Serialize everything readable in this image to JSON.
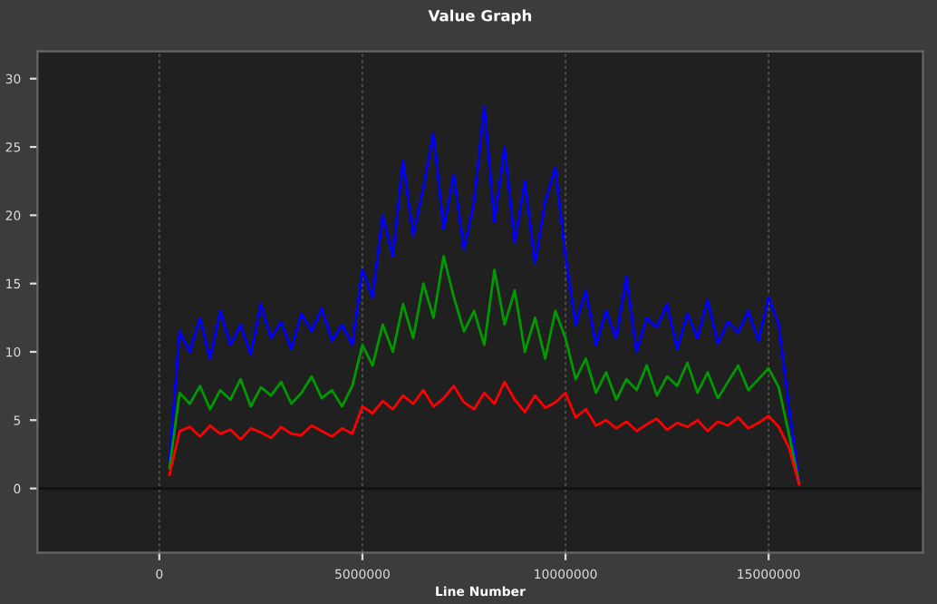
{
  "chart_data": {
    "type": "line",
    "title": "Value Graph",
    "xlabel": "Line Number",
    "x": [
      250000,
      500000,
      750000,
      1000000,
      1250000,
      1500000,
      1750000,
      2000000,
      2250000,
      2500000,
      2750000,
      3000000,
      3250000,
      3500000,
      3750000,
      4000000,
      4250000,
      4500000,
      4750000,
      5000000,
      5250000,
      5500000,
      5750000,
      6000000,
      6250000,
      6500000,
      6750000,
      7000000,
      7250000,
      7500000,
      7750000,
      8000000,
      8250000,
      8500000,
      8750000,
      9000000,
      9250000,
      9500000,
      9750000,
      10000000,
      10250000,
      10500000,
      10750000,
      11000000,
      11250000,
      11500000,
      11750000,
      12000000,
      12250000,
      12500000,
      12750000,
      13000000,
      13250000,
      13500000,
      13750000,
      14000000,
      14250000,
      14500000,
      14750000,
      15000000,
      15250000,
      15500000,
      15750000
    ],
    "series": [
      {
        "color": "#0000ff",
        "values": [
          2.0,
          11.5,
          10.0,
          12.5,
          9.5,
          13.0,
          10.5,
          12.0,
          9.8,
          13.5,
          11.0,
          12.2,
          10.2,
          12.8,
          11.5,
          13.2,
          10.8,
          12.0,
          10.5,
          16.0,
          14.0,
          20.0,
          17.0,
          24.0,
          18.5,
          22.0,
          26.0,
          19.0,
          23.0,
          17.5,
          21.0,
          28.0,
          19.5,
          25.0,
          18.0,
          22.5,
          16.5,
          21.0,
          23.5,
          17.0,
          12.0,
          14.5,
          10.5,
          13.0,
          11.0,
          15.5,
          10.0,
          12.5,
          11.8,
          13.5,
          10.2,
          12.8,
          11.0,
          13.8,
          10.6,
          12.2,
          11.4,
          13.0,
          10.8,
          14.0,
          12.0,
          6.0,
          0.5
        ]
      },
      {
        "color": "#009900",
        "values": [
          1.5,
          7.0,
          6.2,
          7.5,
          5.8,
          7.2,
          6.5,
          8.0,
          6.0,
          7.4,
          6.8,
          7.8,
          6.2,
          7.0,
          8.2,
          6.6,
          7.2,
          6.0,
          7.5,
          10.5,
          9.0,
          12.0,
          10.0,
          13.5,
          11.0,
          15.0,
          12.5,
          17.0,
          14.0,
          11.5,
          13.0,
          10.5,
          16.0,
          12.0,
          14.5,
          10.0,
          12.5,
          9.5,
          13.0,
          11.0,
          8.0,
          9.5,
          7.0,
          8.5,
          6.5,
          8.0,
          7.2,
          9.0,
          6.8,
          8.2,
          7.5,
          9.2,
          7.0,
          8.5,
          6.6,
          7.8,
          9.0,
          7.2,
          8.0,
          8.8,
          7.4,
          4.0,
          0.4
        ]
      },
      {
        "color": "#ff0000",
        "values": [
          1.0,
          4.2,
          4.5,
          3.8,
          4.6,
          4.0,
          4.3,
          3.6,
          4.4,
          4.1,
          3.7,
          4.5,
          4.0,
          3.9,
          4.6,
          4.2,
          3.8,
          4.4,
          4.0,
          6.0,
          5.5,
          6.4,
          5.8,
          6.8,
          6.2,
          7.2,
          6.0,
          6.6,
          7.5,
          6.3,
          5.8,
          7.0,
          6.2,
          7.8,
          6.5,
          5.6,
          6.8,
          5.9,
          6.3,
          7.0,
          5.2,
          5.8,
          4.6,
          5.0,
          4.4,
          4.9,
          4.2,
          4.7,
          5.1,
          4.3,
          4.8,
          4.5,
          5.0,
          4.2,
          4.9,
          4.6,
          5.2,
          4.4,
          4.8,
          5.3,
          4.5,
          3.0,
          0.3
        ]
      }
    ],
    "xlim": [
      -3000000,
      18800000
    ],
    "xticks": [
      0,
      5000000,
      10000000,
      15000000
    ],
    "ylim": [
      -4.7,
      32
    ],
    "yticks": [
      0,
      5,
      10,
      15,
      20,
      25,
      30
    ],
    "grid": "x",
    "ref_lines": [
      {
        "axis": "y",
        "value": 0,
        "color": "#111111"
      }
    ]
  }
}
